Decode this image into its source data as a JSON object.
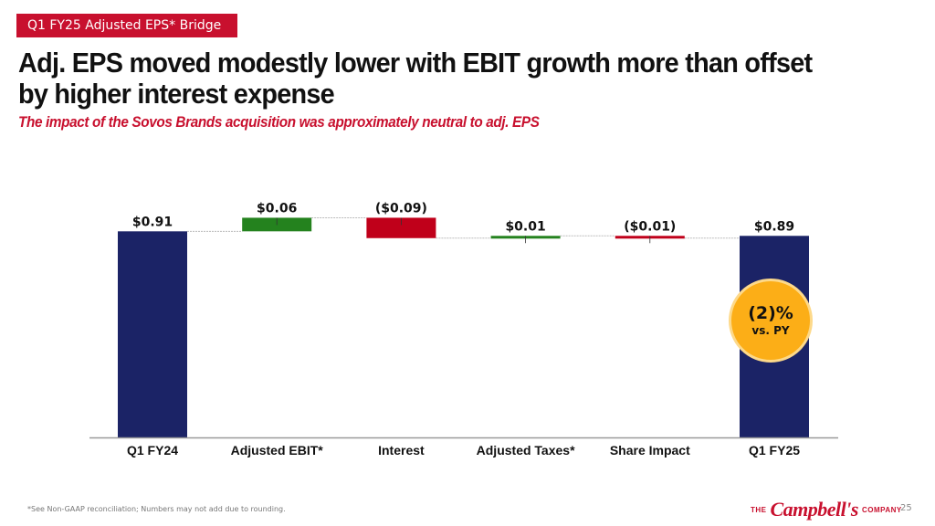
{
  "header": {
    "section_tag": "Q1 FY25 Adjusted EPS* Bridge",
    "title": "Adj. EPS moved modestly lower with EBIT growth more than offset by higher interest expense",
    "subtitle": "The impact of the Sovos Brands acquisition was approximately neutral to adj. EPS"
  },
  "chart_data": {
    "type": "waterfall",
    "title": "Q1 FY25 Adjusted EPS* Bridge",
    "xlabel": "",
    "ylabel": "",
    "grid": false,
    "ylim": [
      0,
      1.0
    ],
    "categories": [
      "Q1 FY24",
      "Adjusted EBIT*",
      "Interest",
      "Adjusted Taxes*",
      "Share Impact",
      "Q1 FY25"
    ],
    "values": [
      0.91,
      0.06,
      -0.09,
      0.01,
      -0.01,
      0.89
    ],
    "kinds": [
      "total",
      "delta",
      "delta",
      "delta",
      "delta",
      "total"
    ],
    "labels": [
      "$0.91",
      "$0.06",
      "($0.09)",
      "$0.01",
      "($0.01)",
      "$0.89"
    ],
    "colors": {
      "total": "#1b2366",
      "increase": "#24821e",
      "decrease": "#c0001a",
      "connector": "#bbbbbb"
    }
  },
  "badge": {
    "value": "(2)%",
    "caption": "vs. PY",
    "color": "#fcae17"
  },
  "footer": {
    "footnote": "*See Non-GAAP reconciliation; Numbers may not add due to rounding.",
    "logo_prefix": "THE",
    "logo_brand": "Campbell's",
    "logo_suffix": "COMPANY",
    "page_number": "25"
  }
}
